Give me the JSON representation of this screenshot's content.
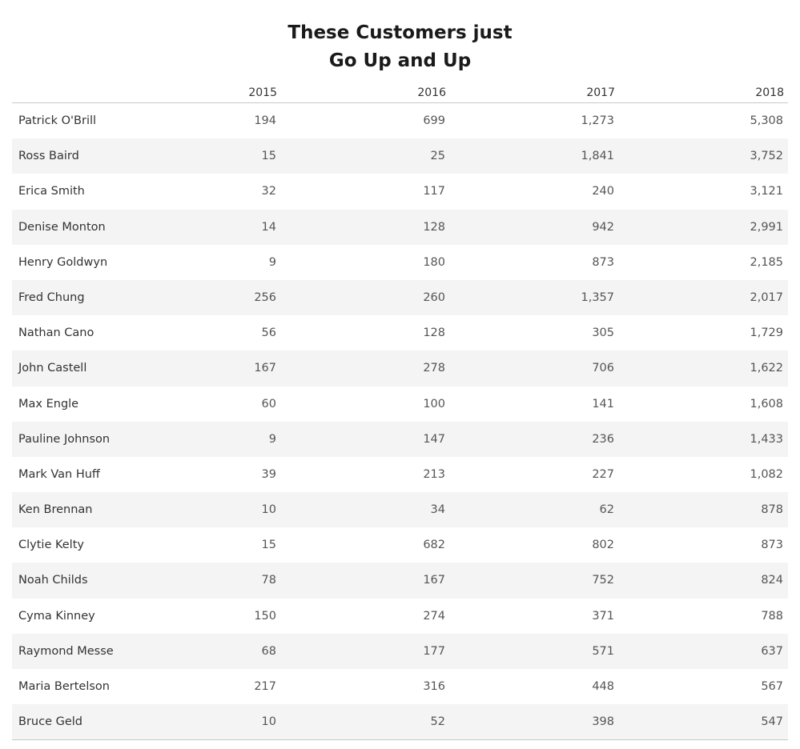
{
  "chart_data": {
    "type": "table",
    "title_lines": [
      "These Customers just",
      "Go Up and Up"
    ],
    "columns": [
      "2015",
      "2016",
      "2017",
      "2018"
    ],
    "rows": [
      {
        "name": "Patrick O'Brill",
        "values": [
          "194",
          "699",
          "1,273",
          "5,308"
        ]
      },
      {
        "name": "Ross Baird",
        "values": [
          "15",
          "25",
          "1,841",
          "3,752"
        ]
      },
      {
        "name": "Erica Smith",
        "values": [
          "32",
          "117",
          "240",
          "3,121"
        ]
      },
      {
        "name": "Denise Monton",
        "values": [
          "14",
          "128",
          "942",
          "2,991"
        ]
      },
      {
        "name": "Henry Goldwyn",
        "values": [
          "9",
          "180",
          "873",
          "2,185"
        ]
      },
      {
        "name": "Fred Chung",
        "values": [
          "256",
          "260",
          "1,357",
          "2,017"
        ]
      },
      {
        "name": "Nathan Cano",
        "values": [
          "56",
          "128",
          "305",
          "1,729"
        ]
      },
      {
        "name": "John Castell",
        "values": [
          "167",
          "278",
          "706",
          "1,622"
        ]
      },
      {
        "name": "Max Engle",
        "values": [
          "60",
          "100",
          "141",
          "1,608"
        ]
      },
      {
        "name": "Pauline Johnson",
        "values": [
          "9",
          "147",
          "236",
          "1,433"
        ]
      },
      {
        "name": "Mark Van Huff",
        "values": [
          "39",
          "213",
          "227",
          "1,082"
        ]
      },
      {
        "name": "Ken Brennan",
        "values": [
          "10",
          "34",
          "62",
          "878"
        ]
      },
      {
        "name": "Clytie Kelty",
        "values": [
          "15",
          "682",
          "802",
          "873"
        ]
      },
      {
        "name": "Noah Childs",
        "values": [
          "78",
          "167",
          "752",
          "824"
        ]
      },
      {
        "name": "Cyma Kinney",
        "values": [
          "150",
          "274",
          "371",
          "788"
        ]
      },
      {
        "name": "Raymond Messe",
        "values": [
          "68",
          "177",
          "571",
          "637"
        ]
      },
      {
        "name": "Maria Bertelson",
        "values": [
          "217",
          "316",
          "448",
          "567"
        ]
      },
      {
        "name": "Bruce Geld",
        "values": [
          "10",
          "52",
          "398",
          "547"
        ]
      }
    ],
    "row_band_color": "#f4f4f4",
    "gridline_color": "#c8c8c8"
  }
}
